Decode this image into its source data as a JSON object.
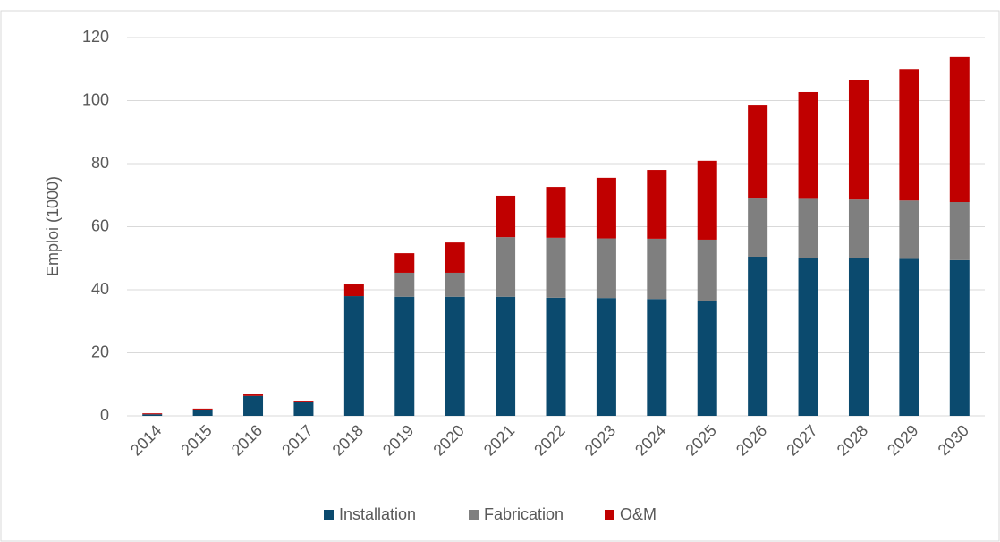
{
  "chart_data": {
    "type": "stacked_bar",
    "ylabel": "Emploi (1000)",
    "categories": [
      "2014",
      "2015",
      "2016",
      "2017",
      "2018",
      "2019",
      "2020",
      "2021",
      "2022",
      "2023",
      "2024",
      "2025",
      "2026",
      "2027",
      "2028",
      "2029",
      "2030"
    ],
    "series": [
      {
        "name": "Installation",
        "color": "#0b4a6e",
        "values": [
          0.5,
          2.0,
          6.3,
          4.4,
          38.0,
          37.8,
          37.8,
          37.8,
          37.5,
          37.4,
          37.1,
          36.6,
          50.5,
          50.2,
          50.0,
          49.8,
          49.4
        ]
      },
      {
        "name": "Fabrication",
        "color": "#7f7f7f",
        "values": [
          0,
          0,
          0,
          0,
          0,
          7.6,
          7.6,
          18.9,
          19.0,
          18.9,
          19.1,
          19.3,
          18.7,
          18.9,
          18.6,
          18.5,
          18.4
        ]
      },
      {
        "name": "O&M",
        "color": "#c00000",
        "values": [
          0.3,
          0.3,
          0.5,
          0.4,
          3.7,
          6.2,
          9.6,
          13.1,
          16.1,
          19.2,
          21.8,
          25.0,
          29.5,
          33.6,
          37.8,
          41.7,
          46.0
        ]
      }
    ],
    "ylim": [
      0,
      120
    ],
    "yticks": [
      0,
      20,
      40,
      60,
      80,
      100,
      120
    ],
    "grid": true,
    "legend": "bottom"
  }
}
